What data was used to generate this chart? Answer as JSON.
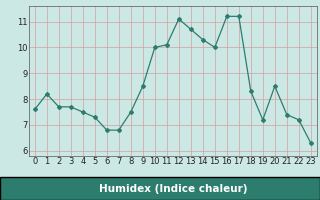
{
  "x": [
    0,
    1,
    2,
    3,
    4,
    5,
    6,
    7,
    8,
    9,
    10,
    11,
    12,
    13,
    14,
    15,
    16,
    17,
    18,
    19,
    20,
    21,
    22,
    23
  ],
  "y": [
    7.6,
    8.2,
    7.7,
    7.7,
    7.5,
    7.3,
    6.8,
    6.8,
    7.5,
    8.5,
    10.0,
    10.1,
    11.1,
    10.7,
    10.3,
    10.0,
    11.2,
    11.2,
    8.3,
    7.2,
    8.5,
    7.4,
    7.2,
    6.3
  ],
  "xlabel": "Humidex (Indice chaleur)",
  "ylim": [
    5.8,
    11.6
  ],
  "xlim": [
    -0.5,
    23.5
  ],
  "yticks": [
    6,
    7,
    8,
    9,
    10,
    11
  ],
  "xticks": [
    0,
    1,
    2,
    3,
    4,
    5,
    6,
    7,
    8,
    9,
    10,
    11,
    12,
    13,
    14,
    15,
    16,
    17,
    18,
    19,
    20,
    21,
    22,
    23
  ],
  "line_color": "#2d7d6e",
  "marker": "D",
  "marker_size": 2.0,
  "line_width": 0.9,
  "bg_color": "#cce8e5",
  "grid_color": "#d4a0a0",
  "axis_bg": "#cce8e5",
  "xlabel_fontsize": 7.5,
  "tick_fontsize": 6.0,
  "banner_color": "#2d7d6e",
  "banner_text_color": "#ffffff"
}
